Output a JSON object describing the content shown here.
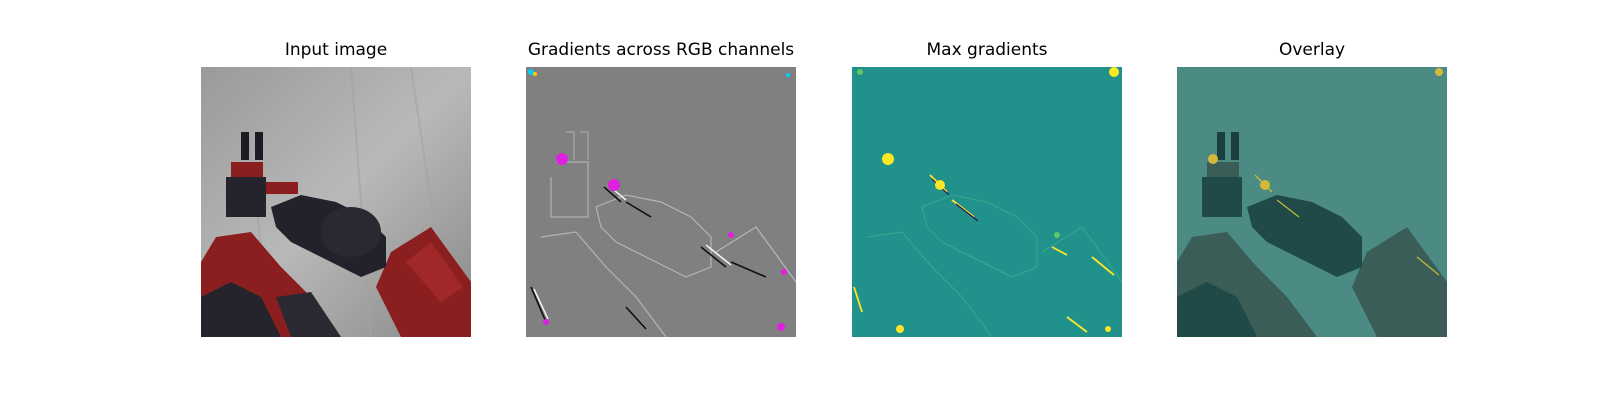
{
  "panels": [
    {
      "title": "Input image"
    },
    {
      "title": "Gradients across RGB channels"
    },
    {
      "title": "Max gradients"
    },
    {
      "title": "Overlay"
    }
  ],
  "colors": {
    "background_gray": "#8f8f8f",
    "robot_red": "#8b1f1f",
    "robot_black": "#23222a",
    "gradient_gray": "#808080",
    "max_grad_teal": "#21918c",
    "max_grad_yellow": "#fde725",
    "overlay_teal": "#4c8a84"
  }
}
